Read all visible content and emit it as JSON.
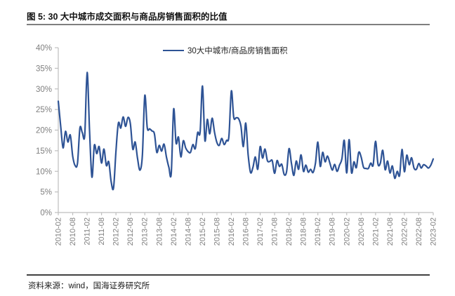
{
  "header": {
    "title": "图 5:  30 大中城市成交面积与商品房销售面积的比值"
  },
  "legend": {
    "label": "30大中城市/商品房销售面积"
  },
  "footer": {
    "source": "资料来源：wind，国海证券研究所"
  },
  "colors": {
    "line": "#2e5395",
    "axis": "#bfbfbf",
    "tick_label": "#7f7f7f"
  },
  "chart_data": {
    "type": "line",
    "title": "30 大中城市成交面积与商品房销售面积的比值",
    "series_name": "30大中城市/商品房销售面积",
    "grid": false,
    "legend_position": "top-center",
    "ylim": [
      0,
      40
    ],
    "y_ticks": [
      0,
      5,
      10,
      15,
      20,
      25,
      30,
      35,
      40
    ],
    "y_tick_suffix": "%",
    "x_tick_labels": [
      "2010-02",
      "2010-08",
      "2011-02",
      "2011-08",
      "2012-02",
      "2012-08",
      "2013-02",
      "2013-08",
      "2014-02",
      "2014-08",
      "2015-02",
      "2015-08",
      "2016-02",
      "2016-08",
      "2017-02",
      "2017-08",
      "2018-02",
      "2018-08",
      "2019-02",
      "2019-08",
      "2020-02",
      "2020-08",
      "2021-02",
      "2021-08",
      "2022-02",
      "2022-08",
      "2023-02"
    ],
    "x": [
      "2010-02",
      "2010-03",
      "2010-04",
      "2010-05",
      "2010-06",
      "2010-07",
      "2010-08",
      "2010-09",
      "2010-10",
      "2010-11",
      "2010-12",
      "2011-01",
      "2011-02",
      "2011-03",
      "2011-04",
      "2011-05",
      "2011-06",
      "2011-07",
      "2011-08",
      "2011-09",
      "2011-10",
      "2011-11",
      "2011-12",
      "2012-01",
      "2012-02",
      "2012-03",
      "2012-04",
      "2012-05",
      "2012-06",
      "2012-07",
      "2012-08",
      "2012-09",
      "2012-10",
      "2012-11",
      "2012-12",
      "2013-01",
      "2013-02",
      "2013-03",
      "2013-04",
      "2013-05",
      "2013-06",
      "2013-07",
      "2013-08",
      "2013-09",
      "2013-10",
      "2013-11",
      "2013-12",
      "2014-01",
      "2014-02",
      "2014-03",
      "2014-04",
      "2014-05",
      "2014-06",
      "2014-07",
      "2014-08",
      "2014-09",
      "2014-10",
      "2014-11",
      "2014-12",
      "2015-01",
      "2015-02",
      "2015-03",
      "2015-04",
      "2015-05",
      "2015-06",
      "2015-07",
      "2015-08",
      "2015-09",
      "2015-10",
      "2015-11",
      "2015-12",
      "2016-01",
      "2016-02",
      "2016-03",
      "2016-04",
      "2016-05",
      "2016-06",
      "2016-07",
      "2016-08",
      "2016-09",
      "2016-10",
      "2016-11",
      "2016-12",
      "2017-01",
      "2017-02",
      "2017-03",
      "2017-04",
      "2017-05",
      "2017-06",
      "2017-07",
      "2017-08",
      "2017-09",
      "2017-10",
      "2017-11",
      "2017-12",
      "2018-01",
      "2018-02",
      "2018-03",
      "2018-04",
      "2018-05",
      "2018-06",
      "2018-07",
      "2018-08",
      "2018-09",
      "2018-10",
      "2018-11",
      "2018-12",
      "2019-01",
      "2019-02",
      "2019-03",
      "2019-04",
      "2019-05",
      "2019-06",
      "2019-07",
      "2019-08",
      "2019-09",
      "2019-10",
      "2019-11",
      "2019-12",
      "2020-01",
      "2020-02",
      "2020-03",
      "2020-04",
      "2020-05",
      "2020-06",
      "2020-07",
      "2020-08",
      "2020-09",
      "2020-10",
      "2020-11",
      "2020-12",
      "2021-01",
      "2021-02",
      "2021-03",
      "2021-04",
      "2021-05",
      "2021-06",
      "2021-07",
      "2021-08",
      "2021-09",
      "2021-10",
      "2021-11",
      "2021-12",
      "2022-01",
      "2022-02",
      "2022-03",
      "2022-04",
      "2022-05",
      "2022-06",
      "2022-07",
      "2022-08",
      "2022-09",
      "2022-10",
      "2022-11",
      "2022-12",
      "2023-01",
      "2023-02"
    ],
    "values": [
      27.0,
      21.0,
      15.7,
      19.7,
      17.1,
      18.8,
      13.7,
      11.4,
      12.0,
      20.5,
      19.4,
      18.8,
      34.0,
      20.0,
      8.6,
      16.3,
      14.3,
      16.0,
      12.0,
      15.4,
      11.4,
      12.3,
      7.5,
      6.0,
      15.0,
      21.7,
      20.5,
      23.2,
      20.9,
      23.1,
      21.5,
      15.4,
      17.1,
      13.0,
      10.3,
      14.0,
      28.4,
      20.6,
      20.3,
      19.8,
      19.1,
      14.6,
      16.3,
      14.9,
      16.6,
      13.5,
      11.0,
      9.5,
      25.1,
      16.9,
      18.3,
      13.5,
      17.4,
      15.7,
      14.8,
      14.6,
      16.5,
      15.5,
      19.4,
      19.5,
      30.7,
      17.5,
      22.6,
      19.1,
      22.9,
      19.5,
      17.0,
      16.3,
      18.0,
      16.5,
      17.5,
      18.5,
      29.5,
      23.1,
      23.0,
      22.8,
      20.9,
      16.0,
      21.7,
      14.0,
      9.7,
      11.0,
      13.5,
      10.5,
      16.0,
      13.2,
      15.4,
      12.6,
      12.4,
      12.6,
      9.5,
      12.6,
      11.2,
      11.7,
      9.2,
      10.0,
      15.5,
      12.0,
      9.0,
      12.5,
      10.5,
      14.0,
      10.0,
      11.5,
      9.8,
      10.5,
      9.7,
      12.0,
      17.1,
      11.2,
      14.6,
      12.3,
      13.7,
      12.0,
      10.3,
      11.7,
      10.0,
      11.5,
      13.0,
      17.5,
      9.6,
      17.7,
      9.7,
      12.3,
      10.9,
      14.6,
      13.5,
      11.0,
      10.7,
      10.7,
      12.0,
      11.5,
      17.3,
      11.8,
      12.0,
      15.1,
      10.4,
      12.5,
      9.6,
      11.3,
      8.3,
      10.0,
      9.0,
      15.3,
      9.9,
      13.9,
      11.6,
      13.3,
      10.8,
      10.5,
      11.9,
      10.8,
      11.6,
      11.3,
      10.8,
      11.5,
      13.0
    ]
  }
}
